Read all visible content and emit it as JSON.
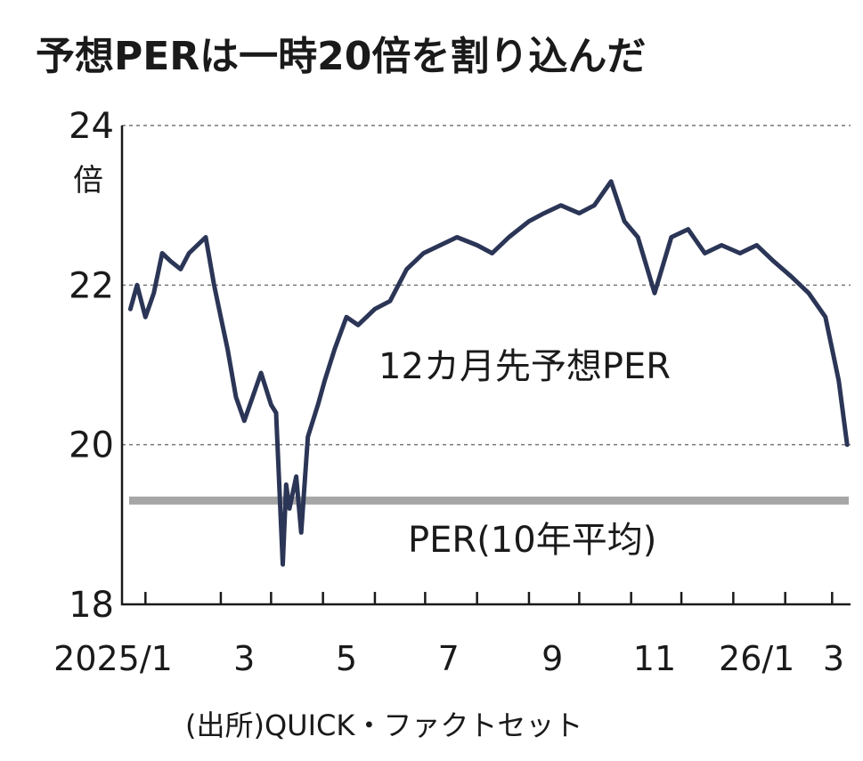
{
  "chart_data": {
    "type": "line",
    "title": "予想PERは一時20倍を割り込んだ",
    "y_unit": "倍",
    "ylim": [
      18,
      24
    ],
    "y_ticks": [
      "18",
      "20",
      "22",
      "24"
    ],
    "grid": "horizontal dashed at 20, 22, 24",
    "x_ticks": [
      "2025/1",
      "3",
      "5",
      "7",
      "9",
      "11",
      "26/1",
      "3"
    ],
    "source": "(出所)QUICK・ファクトセット",
    "series": [
      {
        "name": "12カ月先予想PER",
        "color": "#2b3556",
        "x": [
          "2025/1/06",
          "2025/1/10",
          "2025/1/15",
          "2025/1/20",
          "2025/1/25",
          "2025/1/30",
          "2025/2/05",
          "2025/2/10",
          "2025/2/15",
          "2025/2/20",
          "2025/2/25",
          "2025/3/01",
          "2025/3/05",
          "2025/3/10",
          "2025/3/15",
          "2025/3/20",
          "2025/3/25",
          "2025/3/31",
          "2025/4/03",
          "2025/4/07",
          "2025/4/09",
          "2025/4/11",
          "2025/4/15",
          "2025/4/18",
          "2025/4/22",
          "2025/4/28",
          "2025/5/02",
          "2025/5/08",
          "2025/5/15",
          "2025/5/22",
          "2025/6/01",
          "2025/6/10",
          "2025/6/20",
          "2025/6/30",
          "2025/7/10",
          "2025/7/20",
          "2025/8/01",
          "2025/8/10",
          "2025/8/20",
          "2025/9/01",
          "2025/9/10",
          "2025/9/20",
          "2025/10/01",
          "2025/10/10",
          "2025/10/20",
          "2025/10/28",
          "2025/11/05",
          "2025/11/15",
          "2025/11/25",
          "2025/12/05",
          "2025/12/15",
          "2025/12/25",
          "2026/1/05",
          "2026/1/15",
          "2026/1/25",
          "2026/2/05",
          "2026/2/15",
          "2026/2/25",
          "2026/3/05",
          "2026/3/10"
        ],
        "values": [
          21.7,
          22.0,
          21.6,
          21.9,
          22.4,
          22.3,
          22.2,
          22.4,
          22.5,
          22.6,
          22.0,
          21.6,
          21.2,
          20.6,
          20.3,
          20.6,
          20.9,
          20.5,
          20.4,
          18.5,
          19.5,
          19.2,
          19.6,
          18.9,
          20.1,
          20.5,
          20.8,
          21.2,
          21.6,
          21.5,
          21.7,
          21.8,
          22.2,
          22.4,
          22.5,
          22.6,
          22.5,
          22.4,
          22.6,
          22.8,
          22.9,
          23.0,
          22.9,
          23.0,
          23.3,
          22.8,
          22.6,
          21.9,
          22.6,
          22.7,
          22.4,
          22.5,
          22.4,
          22.5,
          22.3,
          22.1,
          21.9,
          21.6,
          20.8,
          20.0
        ]
      },
      {
        "name": "PER(10年平均)",
        "color": "#a6a6a6",
        "x": [
          "2025/1/01",
          "2026/3/12"
        ],
        "values": [
          19.3,
          19.3
        ]
      }
    ],
    "annotations": [
      "12カ月先予想PER",
      "PER(10年平均)"
    ]
  }
}
